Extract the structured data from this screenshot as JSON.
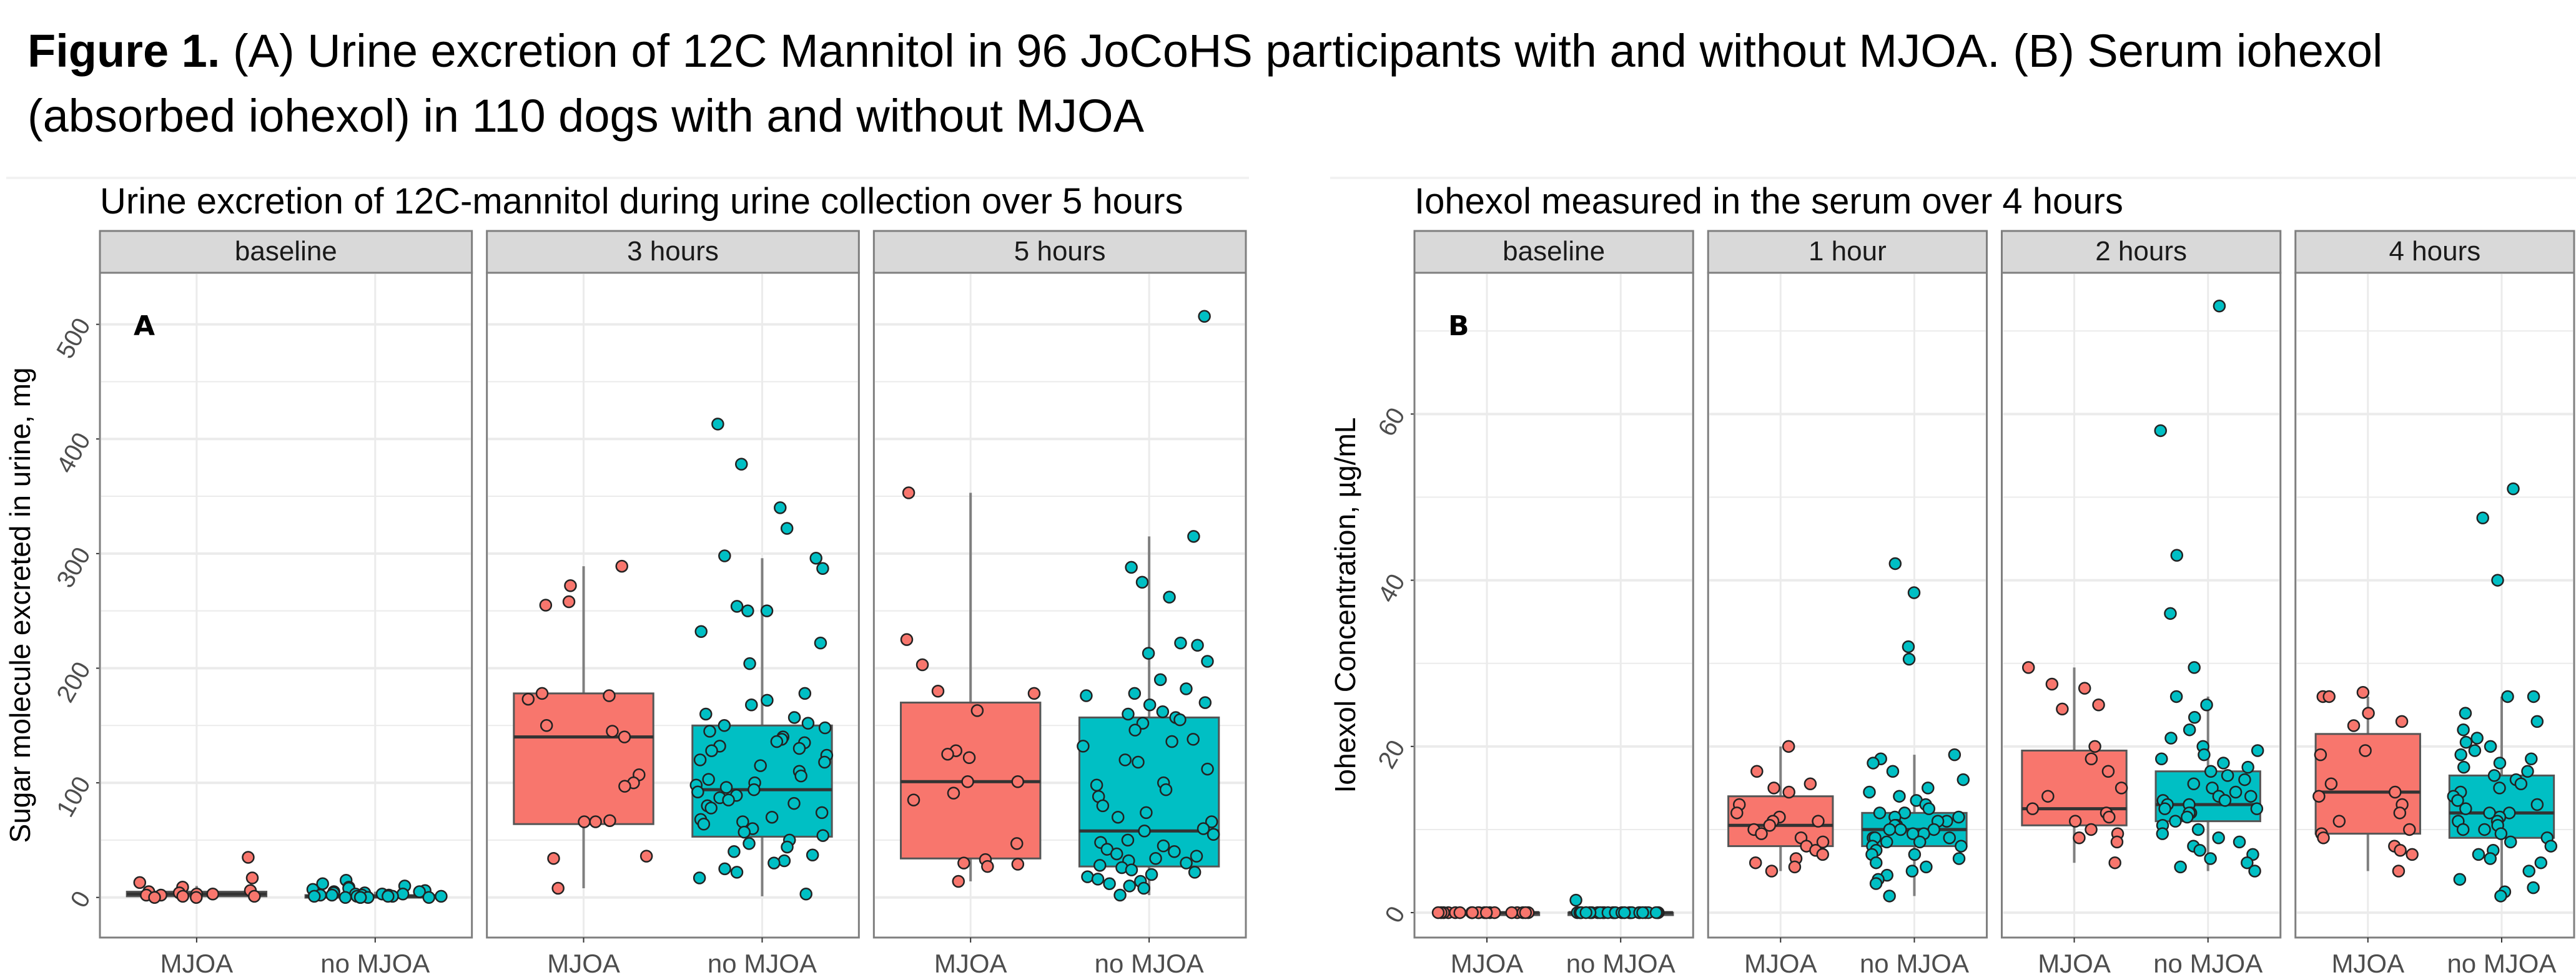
{
  "caption": {
    "label": "Figure 1.",
    "text": " (A) Urine excretion of 12C Mannitol in 96 JoCoHS participants with and without MJOA. (B) Serum iohexol (absorbed iohexol) in 110 dogs with and without MJOA"
  },
  "colors": {
    "MJOA": "#F8766D",
    "no MJOA": "#00BFC4"
  },
  "chart_data": [
    {
      "type": "box",
      "panel_tag": "A",
      "title": "Urine excretion of 12C-mannitol during urine collection over 5 hours",
      "ylabel": "Sugar molecule excreted in urine, mg",
      "xlabel": "",
      "ylim": [
        -35,
        545
      ],
      "yticks": [
        0,
        100,
        200,
        300,
        400,
        500
      ],
      "grid": true,
      "legend": "none",
      "facets": [
        {
          "label": "baseline",
          "groups": [
            {
              "name": "MJOA",
              "q1": 1,
              "median": 3,
              "q3": 5,
              "whisker_low": 0,
              "whisker_high": 10,
              "points": [
                35,
                17,
                13,
                9,
                6,
                5,
                4,
                3,
                3,
                2,
                2,
                1,
                1,
                0,
                0
              ]
            },
            {
              "name": "no MJOA",
              "q1": 0,
              "median": 1,
              "q3": 2,
              "whisker_low": 0,
              "whisker_high": 5,
              "points": [
                15,
                12,
                10,
                9,
                8,
                7,
                6,
                5,
                5,
                4,
                4,
                3,
                3,
                3,
                2,
                2,
                2,
                2,
                1,
                1,
                1,
                1,
                1,
                0,
                0,
                0,
                0,
                0
              ]
            }
          ]
        },
        {
          "label": "3 hours",
          "groups": [
            {
              "name": "MJOA",
              "q1": 64,
              "median": 140,
              "q3": 178,
              "whisker_low": 8,
              "whisker_high": 289,
              "points": [
                289,
                272,
                258,
                255,
                178,
                176,
                173,
                150,
                145,
                140,
                107,
                100,
                97,
                67,
                66,
                66,
                36,
                34,
                8
              ]
            },
            {
              "name": "no MJOA",
              "q1": 53,
              "median": 94,
              "q3": 150,
              "whisker_low": 1,
              "whisker_high": 296,
              "points": [
                413,
                378,
                340,
                322,
                298,
                296,
                287,
                254,
                250,
                250,
                232,
                222,
                204,
                178,
                172,
                168,
                160,
                157,
                152,
                150,
                148,
                145,
                140,
                138,
                136,
                135,
                132,
                130,
                128,
                124,
                120,
                118,
                115,
                110,
                106,
                103,
                100,
                98,
                96,
                94,
                92,
                89,
                87,
                85,
                82,
                80,
                78,
                74,
                70,
                68,
                66,
                64,
                60,
                57,
                54,
                50,
                47,
                44,
                40,
                37,
                32,
                30,
                25,
                22,
                17,
                3
              ]
            }
          ]
        },
        {
          "label": "5 hours",
          "groups": [
            {
              "name": "MJOA",
              "q1": 34,
              "median": 101,
              "q3": 170,
              "whisker_low": 14,
              "whisker_high": 353,
              "points": [
                353,
                225,
                203,
                180,
                178,
                163,
                128,
                125,
                122,
                101,
                101,
                91,
                85,
                47,
                33,
                30,
                29,
                27,
                14
              ]
            },
            {
              "name": "no MJOA",
              "q1": 27,
              "median": 58,
              "q3": 157,
              "whisker_low": 2,
              "whisker_high": 315,
              "points": [
                507,
                315,
                288,
                275,
                262,
                222,
                220,
                213,
                206,
                190,
                182,
                178,
                176,
                170,
                168,
                162,
                160,
                157,
                155,
                152,
                146,
                138,
                136,
                132,
                120,
                118,
                112,
                100,
                98,
                94,
                88,
                80,
                74,
                70,
                66,
                60,
                58,
                55,
                50,
                48,
                45,
                42,
                40,
                38,
                36,
                34,
                32,
                30,
                28,
                26,
                24,
                22,
                20,
                18,
                16,
                14,
                12,
                10,
                8,
                2
              ]
            }
          ]
        }
      ]
    },
    {
      "type": "box",
      "panel_tag": "B",
      "title": "Iohexol measured in the serum over 4 hours",
      "ylabel": "Iohexol Concentration, µg/mL",
      "xlabel": "",
      "ylim": [
        -3,
        77
      ],
      "yticks": [
        0,
        20,
        40,
        60
      ],
      "grid": true,
      "legend": "none",
      "facets": [
        {
          "label": "baseline",
          "groups": [
            {
              "name": "MJOA",
              "q1": 0,
              "median": 0,
              "q3": 0,
              "whisker_low": 0,
              "whisker_high": 0,
              "points": [
                0,
                0,
                0,
                0,
                0,
                0,
                0,
                0,
                0,
                0,
                0,
                0,
                0,
                0,
                0,
                0,
                0,
                0,
                0,
                0
              ]
            },
            {
              "name": "no MJOA",
              "q1": 0,
              "median": 0,
              "q3": 0,
              "whisker_low": 0,
              "whisker_high": 0,
              "points": [
                1.5,
                0,
                0,
                0,
                0,
                0,
                0,
                0,
                0,
                0,
                0,
                0,
                0,
                0,
                0,
                0,
                0,
                0,
                0,
                0,
                0,
                0,
                0,
                0,
                0,
                0,
                0,
                0,
                0,
                0
              ]
            }
          ]
        },
        {
          "label": "1 hour",
          "groups": [
            {
              "name": "MJOA",
              "q1": 8,
              "median": 10.5,
              "q3": 14,
              "whisker_low": 5,
              "whisker_high": 20,
              "points": [
                20,
                17,
                15.5,
                15,
                14.5,
                13,
                12,
                11.5,
                11,
                11,
                10.5,
                10,
                9.5,
                9,
                8.5,
                8,
                7.5,
                7,
                6.5,
                6,
                5.5,
                5
              ]
            },
            {
              "name": "no MJOA",
              "q1": 8,
              "median": 10,
              "q3": 12,
              "whisker_low": 2,
              "whisker_high": 19,
              "points": [
                42,
                38.5,
                32,
                30.5,
                19,
                18.5,
                18,
                17,
                16,
                15,
                14.5,
                14,
                13.5,
                13,
                12.5,
                12,
                12,
                11.5,
                11.5,
                11,
                11,
                10.5,
                10.5,
                10,
                10,
                10,
                9.5,
                9.5,
                9,
                9,
                9,
                8.5,
                8.5,
                8,
                8,
                7.5,
                7,
                7,
                6.5,
                6,
                5.5,
                5,
                4.5,
                4,
                3.5,
                2
              ]
            }
          ]
        },
        {
          "label": "2 hours",
          "groups": [
            {
              "name": "MJOA",
              "q1": 10.5,
              "median": 12.5,
              "q3": 19.5,
              "whisker_low": 6,
              "whisker_high": 29.5,
              "points": [
                29.5,
                27.5,
                27,
                25,
                24.5,
                20,
                18.5,
                17,
                15,
                14,
                12.5,
                12,
                11.5,
                11,
                10,
                9.5,
                9,
                8.5,
                6
              ]
            },
            {
              "name": "no MJOA",
              "q1": 11,
              "median": 13,
              "q3": 17,
              "whisker_low": 5,
              "whisker_high": 26,
              "points": [
                73,
                58,
                43,
                36,
                29.5,
                26,
                25,
                23.5,
                22,
                21,
                20,
                19.5,
                19,
                18.5,
                18,
                17.5,
                17,
                16.5,
                16,
                15.5,
                15,
                14.5,
                14,
                14,
                13.5,
                13.5,
                13,
                13,
                12.5,
                12.5,
                12,
                12,
                11.5,
                11,
                10.5,
                10,
                9.5,
                9,
                8.5,
                8,
                7.5,
                7,
                6.5,
                6,
                5.5,
                5
              ]
            }
          ]
        },
        {
          "label": "4 hours",
          "groups": [
            {
              "name": "MJOA",
              "q1": 9.5,
              "median": 14.5,
              "q3": 21.5,
              "whisker_low": 5,
              "whisker_high": 26,
              "points": [
                26.5,
                26,
                26,
                24,
                23,
                22.5,
                19.5,
                19,
                15.5,
                14.5,
                14,
                13,
                12,
                11,
                10,
                9.5,
                9,
                8,
                7.5,
                7,
                5
              ]
            },
            {
              "name": "no MJOA",
              "q1": 9,
              "median": 12,
              "q3": 16.5,
              "whisker_low": 2,
              "whisker_high": 26,
              "points": [
                51,
                47.5,
                40,
                26,
                26,
                24,
                23,
                22,
                21,
                20.5,
                20,
                19.5,
                19,
                18.5,
                18,
                17.5,
                17,
                16.5,
                16,
                15.5,
                15,
                14.5,
                14,
                13.5,
                13,
                12.5,
                12,
                12,
                11.5,
                11,
                11,
                10.5,
                10,
                10,
                9.5,
                9,
                8.5,
                8,
                7.5,
                7,
                6.5,
                6,
                5,
                4,
                3,
                2.5,
                2
              ]
            }
          ]
        }
      ]
    }
  ]
}
